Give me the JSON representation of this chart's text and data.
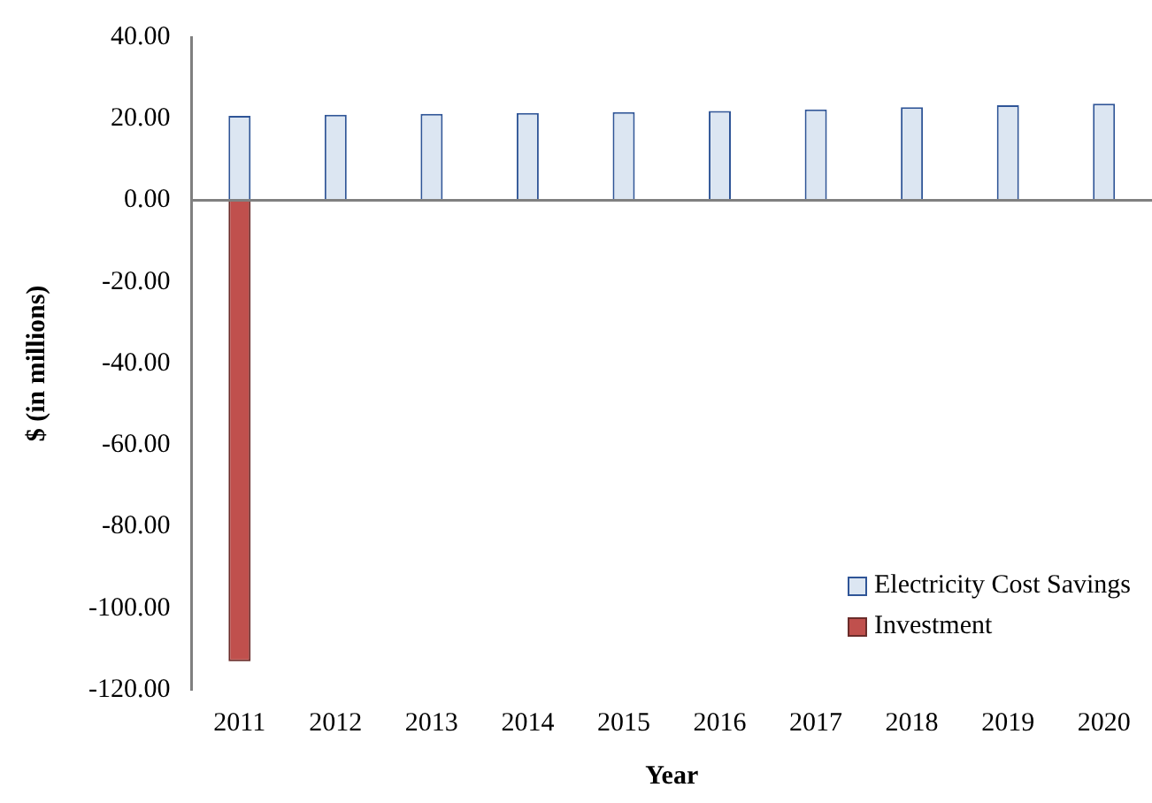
{
  "chart_data": {
    "type": "bar",
    "xlabel": "Year",
    "ylabel": "$ (in millions)",
    "categories": [
      "2011",
      "2012",
      "2013",
      "2014",
      "2015",
      "2016",
      "2017",
      "2018",
      "2019",
      "2020"
    ],
    "series": [
      {
        "name": "Electricity Cost Savings",
        "color": "#dce6f2",
        "values": [
          20.7,
          21.0,
          21.2,
          21.4,
          21.6,
          21.9,
          22.3,
          22.8,
          23.3,
          23.7
        ]
      },
      {
        "name": "Investment",
        "color": "#c0504d",
        "values": [
          -113,
          null,
          null,
          null,
          null,
          null,
          null,
          null,
          null,
          null
        ]
      }
    ],
    "stacked": true,
    "ylim": [
      -120,
      40
    ],
    "yticks": [
      {
        "value": -120,
        "label": "-120.00"
      },
      {
        "value": -100,
        "label": "-100.00"
      },
      {
        "value": -80,
        "label": "-80.00"
      },
      {
        "value": -60,
        "label": "-60.00"
      },
      {
        "value": -40,
        "label": "-40.00"
      },
      {
        "value": -20,
        "label": "-20.00"
      },
      {
        "value": 0,
        "label": "0.00"
      },
      {
        "value": 20,
        "label": "20.00"
      },
      {
        "value": 40,
        "label": "40.00"
      }
    ],
    "legend": "bottom right"
  }
}
